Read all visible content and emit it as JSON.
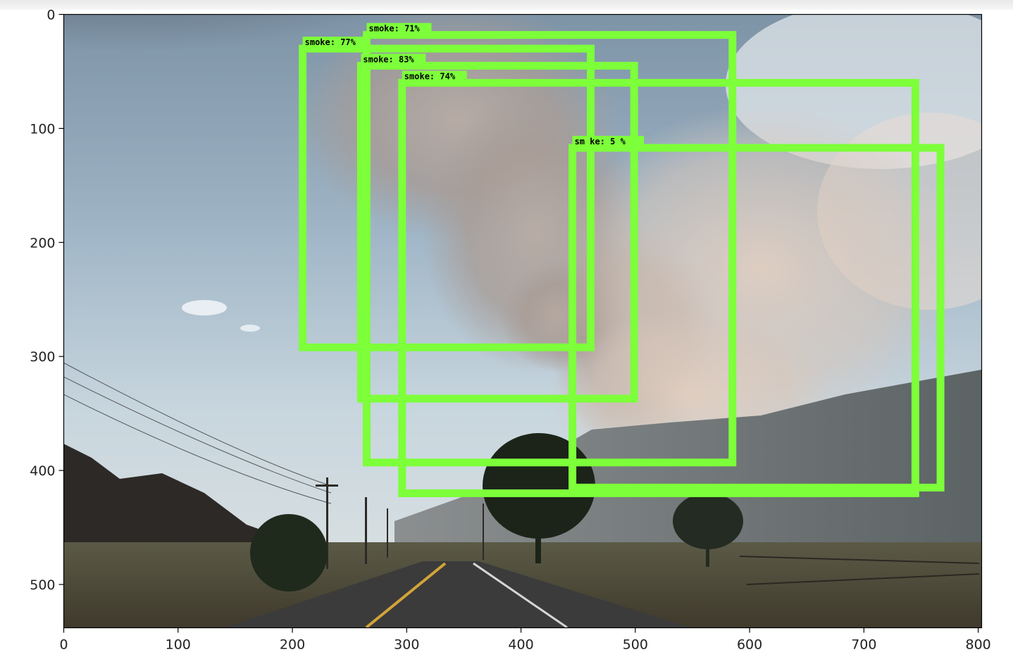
{
  "plot": {
    "x_ticks": [
      "0",
      "100",
      "200",
      "300",
      "400",
      "500",
      "600",
      "700",
      "800"
    ],
    "y_ticks": [
      "0",
      "100",
      "200",
      "300",
      "400",
      "500"
    ],
    "xlim": [
      0,
      803
    ],
    "ylim": [
      538,
      0
    ]
  },
  "box_color": "#7dff3a",
  "detections": [
    {
      "label": "smoke:  71%",
      "xmin": 265,
      "ymin": 18,
      "xmax": 585,
      "ymax": 393
    },
    {
      "label": "smoke:  77%",
      "xmin": 209,
      "ymin": 30,
      "xmax": 461,
      "ymax": 292
    },
    {
      "label": "smoke:  83%",
      "xmin": 260,
      "ymin": 45,
      "xmax": 499,
      "ymax": 337
    },
    {
      "label": "smoke:  74%",
      "xmin": 296,
      "ymin": 60,
      "xmax": 745,
      "ymax": 420
    },
    {
      "label": "sm  ke:  5  %",
      "xmin": 445,
      "ymin": 117,
      "xmax": 767,
      "ymax": 415
    }
  ]
}
